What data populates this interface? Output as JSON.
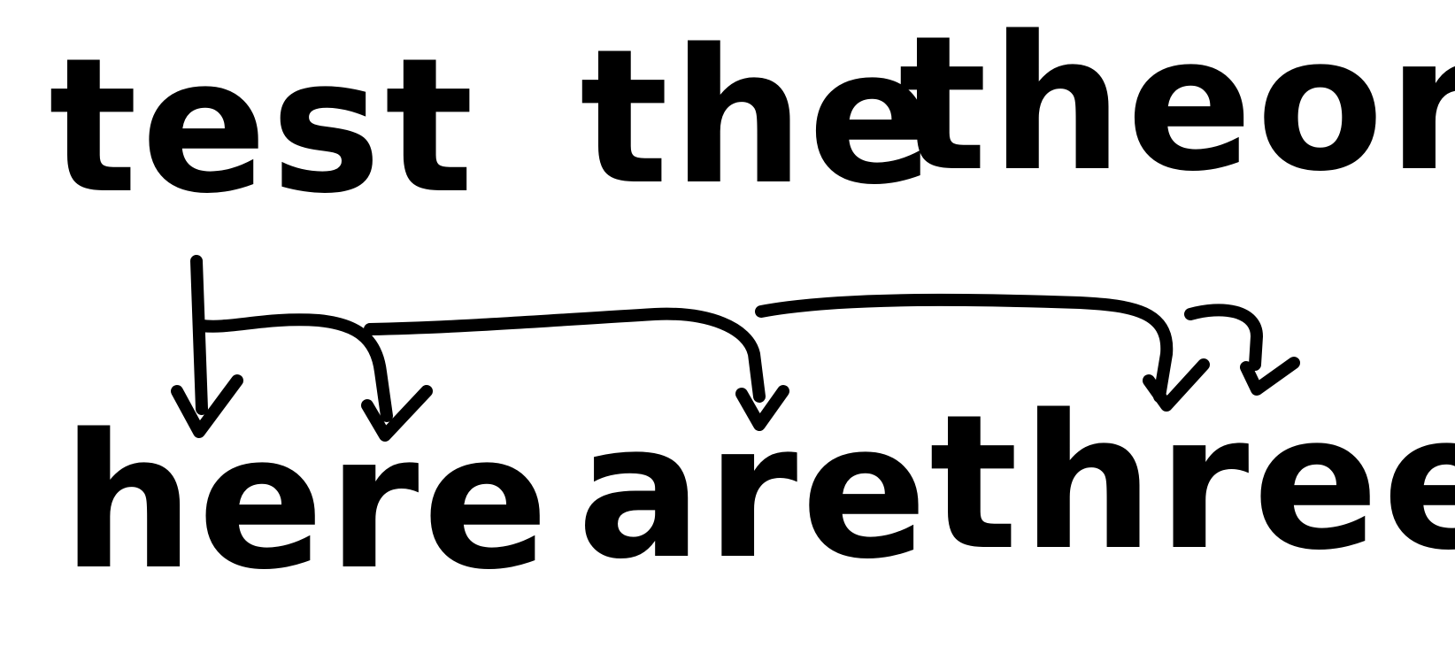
{
  "phrase_top": {
    "words": [
      "test",
      "the",
      "theory"
    ]
  },
  "phrase_bottom": {
    "words": [
      "here",
      "are",
      "three"
    ]
  },
  "arrows": [
    {
      "from": "test",
      "to": "here"
    },
    {
      "from": "test",
      "to": "here-second-letter"
    },
    {
      "from": "test",
      "to": "are"
    },
    {
      "from": "test",
      "to": "three"
    },
    {
      "from": "test",
      "to": "three-end"
    }
  ],
  "colors": {
    "ink": "#000000",
    "background": "#ffffff"
  }
}
